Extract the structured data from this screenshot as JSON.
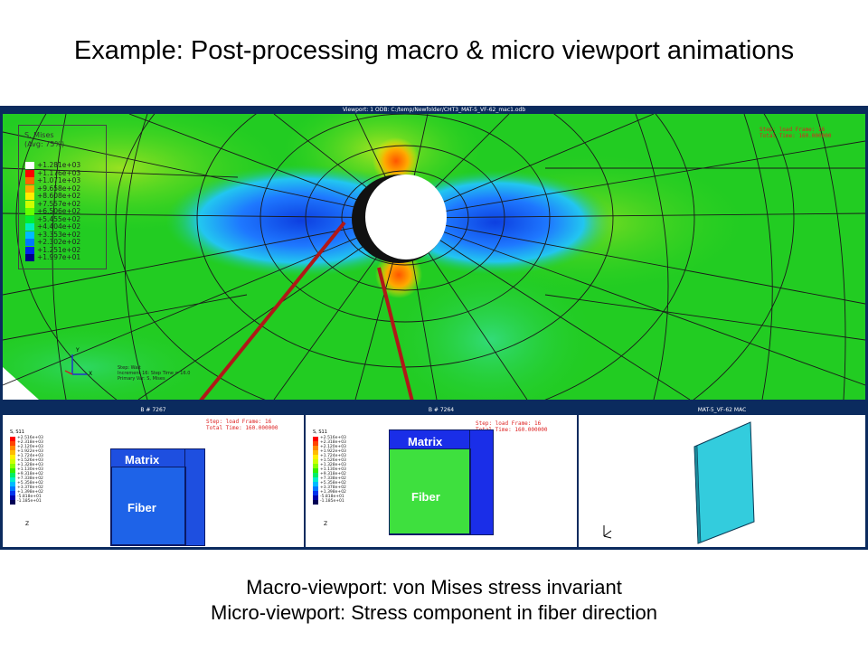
{
  "slide": {
    "title": "Example: Post-processing macro & micro viewport animations",
    "caption_line1": "Macro-viewport: von Mises stress invariant",
    "caption_line2": "Micro-viewport: Stress component in fiber direction"
  },
  "macro_viewport": {
    "title": "Viewport: 1    ODB: C:/temp/Newfolder/CHT3_MAT-5_VF-62_mac1.odb",
    "legend_title_1": "S, Mises",
    "legend_title_2": "(Avg: 75%)",
    "legend": [
      {
        "value": "+1.281e+03",
        "color": "#ffffff"
      },
      {
        "value": "+1.176e+03",
        "color": "#ff0000"
      },
      {
        "value": "+1.071e+03",
        "color": "#ff6600"
      },
      {
        "value": "+9.658e+02",
        "color": "#ffaa00"
      },
      {
        "value": "+8.608e+02",
        "color": "#ffee00"
      },
      {
        "value": "+7.557e+02",
        "color": "#ccff00"
      },
      {
        "value": "+6.506e+02",
        "color": "#66ff00"
      },
      {
        "value": "+5.455e+02",
        "color": "#00ee33"
      },
      {
        "value": "+4.404e+02",
        "color": "#00eebb"
      },
      {
        "value": "+3.353e+02",
        "color": "#00bbff"
      },
      {
        "value": "+2.302e+02",
        "color": "#0077ff"
      },
      {
        "value": "+1.251e+02",
        "color": "#0022ee"
      },
      {
        "value": "+1.997e+01",
        "color": "#000088"
      }
    ],
    "step_line1": "Step: load      Frame: 16",
    "step_line2": "Total Time: 160.000000",
    "info_line1": "Step: Wait",
    "info_line2": "Increment    16: Step Time =    16.0",
    "info_line3": "Primary Var: S, Mises"
  },
  "micro_viewports": [
    {
      "title": "B # 7267",
      "legend_title": "S, S11",
      "step_line1": "Step: load      Frame: 16",
      "step_line2": "Total Time: 160.000000",
      "matrix_label": "Matrix",
      "fiber_label": "Fiber",
      "fiber_color": "#1e63e8",
      "matrix_color": "#1e4fe0"
    },
    {
      "title": "B # 7264",
      "legend_title": "S, S11",
      "step_line1": "Step: load      Frame: 16",
      "step_line2": "Total Time: 160.000000",
      "matrix_label": "Matrix",
      "fiber_label": "Fiber",
      "fiber_color": "#3ee03e",
      "matrix_color": "#1a2ee8"
    },
    {
      "title": "MAT-5_VF-62 MAC"
    }
  ],
  "micro_legend_values": [
    "+2.516e+03",
    "+2.318e+03",
    "+2.120e+03",
    "+1.922e+03",
    "+1.724e+03",
    "+1.526e+03",
    "+1.328e+03",
    "+1.130e+03",
    "+9.318e+02",
    "+7.338e+02",
    "+5.358e+02",
    "+3.378e+02",
    "+1.398e+02",
    "-5.818e+01",
    "-1.185e+01"
  ],
  "micro_legend_colors": [
    "#ff0000",
    "#ff4400",
    "#ff8800",
    "#ffbb00",
    "#ffee00",
    "#ccff00",
    "#88ff00",
    "#33ee00",
    "#00ee66",
    "#00eecc",
    "#00bbff",
    "#0077ff",
    "#0033ee",
    "#0000aa",
    "#000055"
  ],
  "axis_labels": {
    "x": "X",
    "y": "Y",
    "z": "Z"
  }
}
